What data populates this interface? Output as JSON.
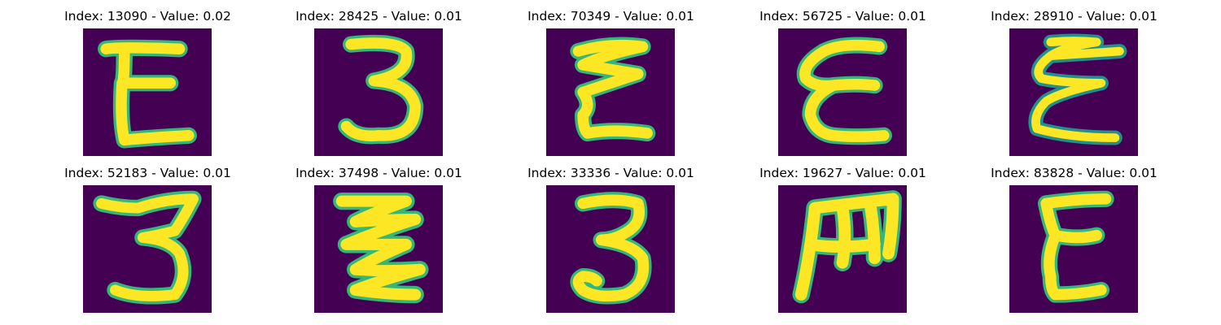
{
  "colors": {
    "background": "#440154",
    "stroke_core": "#fde725",
    "stroke_edge": "#35b779",
    "stroke_mid": "#21918c"
  },
  "panels": [
    {
      "title": "Index: 13090 - Value: 0.02",
      "glyph": "E"
    },
    {
      "title": "Index: 28425 - Value: 0.01",
      "glyph": "3"
    },
    {
      "title": "Index: 70349 - Value: 0.01",
      "glyph": "E"
    },
    {
      "title": "Index: 56725 - Value: 0.01",
      "glyph": "E"
    },
    {
      "title": "Index: 28910 - Value: 0.01",
      "glyph": "E"
    },
    {
      "title": "Index: 52183 - Value: 0.01",
      "glyph": "3"
    },
    {
      "title": "Index: 37498 - Value: 0.01",
      "glyph": "E"
    },
    {
      "title": "Index: 33336 - Value: 0.01",
      "glyph": "3"
    },
    {
      "title": "Index: 19627 - Value: 0.01",
      "glyph": "E"
    },
    {
      "title": "Index: 83828 - Value: 0.01",
      "glyph": "E"
    }
  ]
}
